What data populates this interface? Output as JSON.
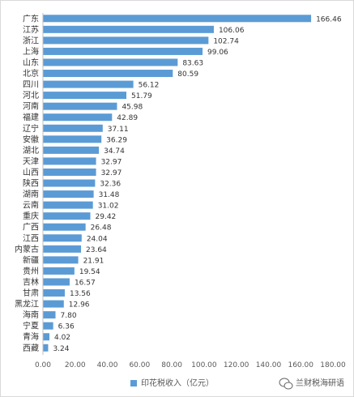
{
  "chart_data": {
    "type": "bar",
    "orientation": "horizontal",
    "categories": [
      "广东",
      "江苏",
      "浙江",
      "上海",
      "山东",
      "北京",
      "四川",
      "河北",
      "河南",
      "福建",
      "辽宁",
      "安徽",
      "湖北",
      "天津",
      "山西",
      "陕西",
      "湖南",
      "云南",
      "重庆",
      "广西",
      "江西",
      "内蒙古",
      "新疆",
      "贵州",
      "吉林",
      "甘肃",
      "黑龙江",
      "海南",
      "宁夏",
      "青海",
      "西藏"
    ],
    "values": [
      166.46,
      106.06,
      102.74,
      99.06,
      83.63,
      80.59,
      56.12,
      51.79,
      45.98,
      42.89,
      37.11,
      36.29,
      34.74,
      32.97,
      32.97,
      32.36,
      31.48,
      31.02,
      29.42,
      26.48,
      24.04,
      23.64,
      21.91,
      19.54,
      16.57,
      13.56,
      12.96,
      7.8,
      6.36,
      4.02,
      3.24
    ],
    "value_labels": [
      "166.46",
      "106.06",
      "102.74",
      "99.06",
      "83.63",
      "80.59",
      "56.12",
      "51.79",
      "45.98",
      "42.89",
      "37.11",
      "36.29",
      "34.74",
      "32.97",
      "32.97",
      "32.36",
      "31.48",
      "31.02",
      "29.42",
      "26.48",
      "24.04",
      "23.64",
      "21.91",
      "19.54",
      "16.57",
      "13.56",
      "12.96",
      "7.80",
      "6.36",
      "4.02",
      "3.24"
    ],
    "xlim": [
      0,
      180
    ],
    "x_ticks": [
      "0.00",
      "20.00",
      "40.00",
      "60.00",
      "80.00",
      "100.00",
      "120.00",
      "140.00",
      "160.00",
      "180.00"
    ],
    "series": [
      {
        "name": "印花税收入（亿元）",
        "color": "#5b9bd5"
      }
    ],
    "legend_position": "bottom",
    "grid": false
  },
  "watermark": {
    "text": "兰财税海研语",
    "icon": "wechat-icon"
  }
}
